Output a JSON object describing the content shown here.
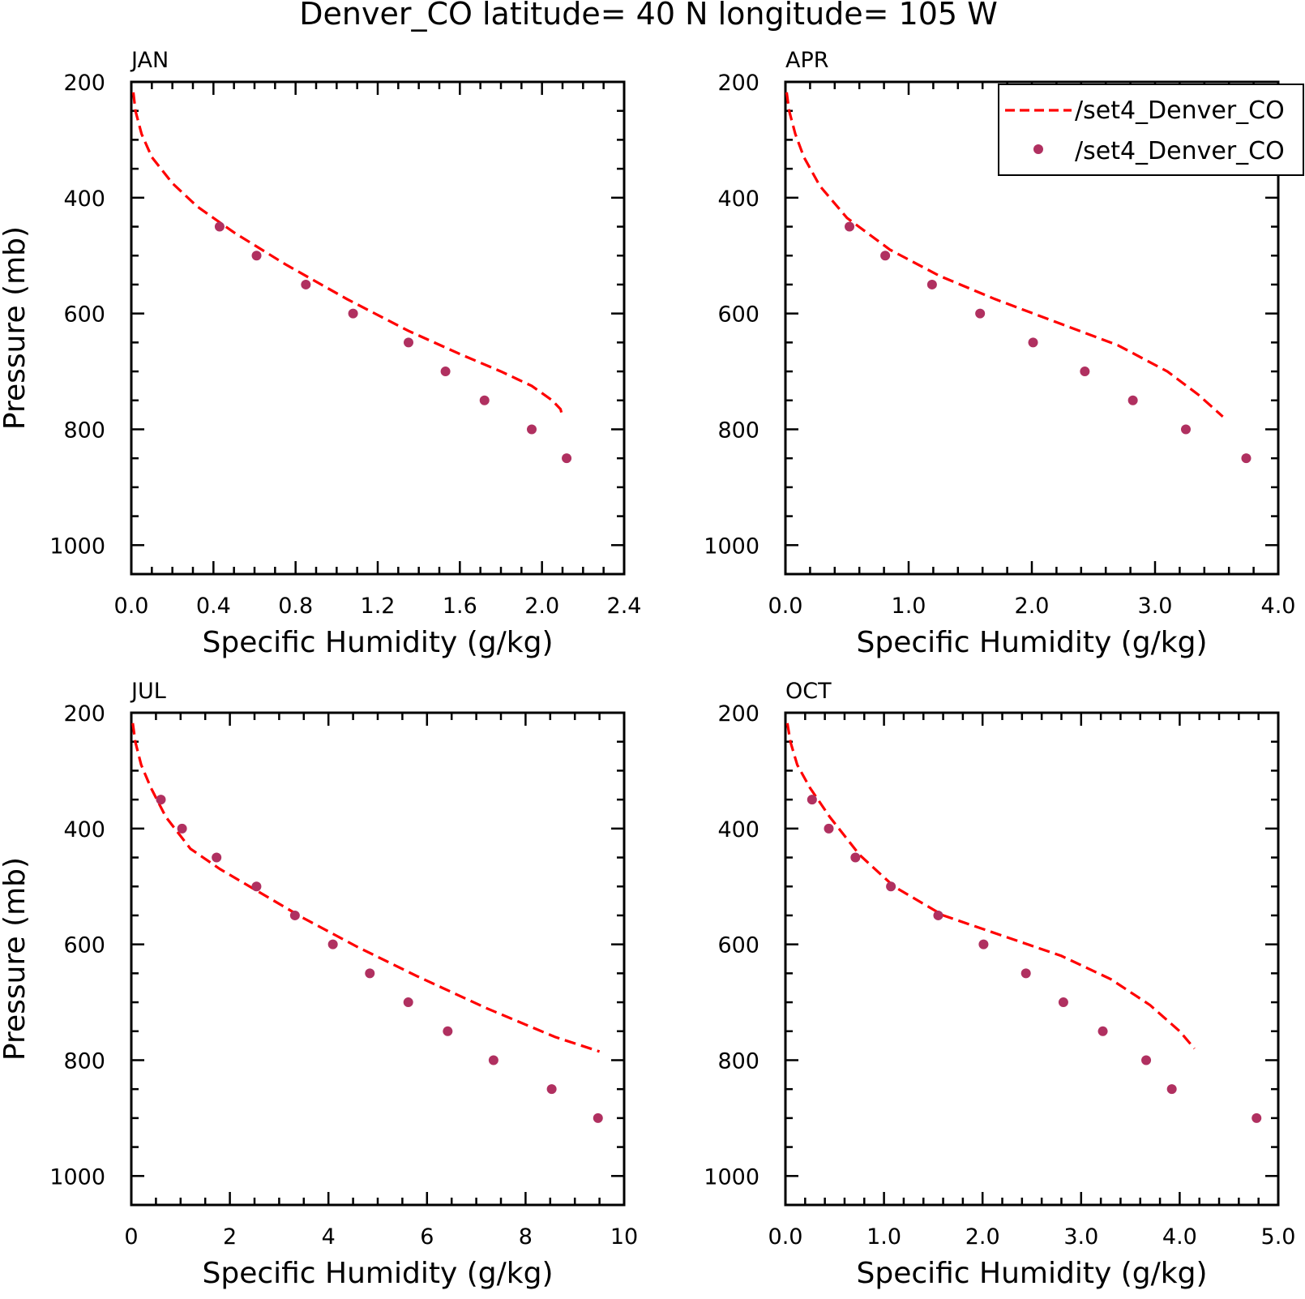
{
  "title": "Denver_CO  latitude= 40 N longitude= 105 W",
  "legend": {
    "entries": [
      {
        "label": "/set4_Denver_CO",
        "style": "dashed-line",
        "color": "#ff0000"
      },
      {
        "label": "/set4_Denver_CO",
        "style": "marker",
        "color": "#b03060"
      }
    ]
  },
  "colors": {
    "line": "#ff0000",
    "marker": "#b03060",
    "axes": "#000000"
  },
  "chart_data": [
    {
      "type": "line",
      "panel": "JAN",
      "xlabel": "Specific Humidity (g/kg)",
      "ylabel": "Pressure (mb)",
      "xlim": [
        0,
        2.4
      ],
      "ylim": [
        1050,
        200
      ],
      "y_inverted": true,
      "xticks": [
        0,
        0.4,
        0.8,
        1.2,
        1.6,
        2.0,
        2.4
      ],
      "xtick_labels": [
        "0.0",
        "0.4",
        "0.8",
        "1.2",
        "1.6",
        "2.0",
        "2.4"
      ],
      "xminor": 0.1,
      "yticks": [
        200,
        400,
        600,
        800,
        1000
      ],
      "ytick_labels": [
        "200",
        "400",
        "600",
        "800",
        "1000"
      ],
      "yminor": 50,
      "series": [
        {
          "name": "/set4_Denver_CO",
          "style": "dashed-line",
          "x": [
            0.01,
            0.02,
            0.05,
            0.1,
            0.2,
            0.32,
            0.5,
            0.75,
            1.05,
            1.35,
            1.6,
            1.8,
            1.95,
            2.05,
            2.09,
            2.1
          ],
          "y": [
            218,
            250,
            290,
            330,
            375,
            415,
            460,
            515,
            575,
            630,
            670,
            700,
            725,
            750,
            765,
            778
          ]
        },
        {
          "name": "/set4_Denver_CO",
          "style": "marker",
          "x": [
            0.43,
            0.61,
            0.85,
            1.08,
            1.35,
            1.53,
            1.72,
            1.95,
            2.12
          ],
          "y": [
            450,
            500,
            550,
            600,
            650,
            700,
            750,
            800,
            850
          ]
        }
      ]
    },
    {
      "type": "line",
      "panel": "APR",
      "xlabel": "Specific Humidity (g/kg)",
      "ylabel": "",
      "xlim": [
        0,
        4.0
      ],
      "ylim": [
        1050,
        200
      ],
      "y_inverted": true,
      "xticks": [
        0,
        1.0,
        2.0,
        3.0,
        4.0
      ],
      "xtick_labels": [
        "0.0",
        "1.0",
        "2.0",
        "3.0",
        "4.0"
      ],
      "xminor": 0.2,
      "yticks": [
        200,
        400,
        600,
        800,
        1000
      ],
      "ytick_labels": [
        "200",
        "400",
        "600",
        "800",
        "1000"
      ],
      "yminor": 50,
      "legend_position": "top-right",
      "series": [
        {
          "name": "/set4_Denver_CO",
          "style": "dashed-line",
          "x": [
            0.01,
            0.03,
            0.08,
            0.15,
            0.28,
            0.5,
            0.85,
            1.25,
            1.7,
            2.2,
            2.7,
            3.1,
            3.35,
            3.55
          ],
          "y": [
            218,
            250,
            290,
            330,
            380,
            435,
            490,
            535,
            575,
            615,
            655,
            700,
            740,
            778
          ]
        },
        {
          "name": "/set4_Denver_CO",
          "style": "marker",
          "x": [
            0.52,
            0.81,
            1.19,
            1.58,
            2.01,
            2.43,
            2.82,
            3.25,
            3.74
          ],
          "y": [
            450,
            500,
            550,
            600,
            650,
            700,
            750,
            800,
            850
          ]
        }
      ]
    },
    {
      "type": "line",
      "panel": "JUL",
      "xlabel": "Specific Humidity (g/kg)",
      "ylabel": "Pressure (mb)",
      "xlim": [
        0,
        10
      ],
      "ylim": [
        1050,
        200
      ],
      "y_inverted": true,
      "xticks": [
        0,
        2,
        4,
        6,
        8,
        10
      ],
      "xtick_labels": [
        "0",
        "2",
        "4",
        "6",
        "8",
        "10"
      ],
      "xminor": 0.5,
      "yticks": [
        200,
        400,
        600,
        800,
        1000
      ],
      "ytick_labels": [
        "200",
        "400",
        "600",
        "800",
        "1000"
      ],
      "yminor": 50,
      "series": [
        {
          "name": "/set4_Denver_CO",
          "style": "dashed-line",
          "x": [
            0.03,
            0.08,
            0.2,
            0.4,
            0.7,
            1.2,
            1.8,
            2.6,
            3.5,
            4.6,
            5.8,
            7.2,
            8.6,
            9.5
          ],
          "y": [
            218,
            250,
            290,
            330,
            380,
            435,
            470,
            510,
            555,
            605,
            655,
            710,
            760,
            785
          ]
        },
        {
          "name": "/set4_Denver_CO",
          "style": "marker",
          "x": [
            0.6,
            1.03,
            1.73,
            2.54,
            3.32,
            4.09,
            4.84,
            5.62,
            6.42,
            7.35,
            8.53,
            9.47
          ],
          "y": [
            350,
            400,
            450,
            500,
            550,
            600,
            650,
            700,
            750,
            800,
            850,
            900
          ]
        }
      ]
    },
    {
      "type": "line",
      "panel": "OCT",
      "xlabel": "Specific Humidity (g/kg)",
      "ylabel": "",
      "xlim": [
        0,
        5.0
      ],
      "ylim": [
        1050,
        200
      ],
      "y_inverted": true,
      "xticks": [
        0,
        1.0,
        2.0,
        3.0,
        4.0,
        5.0
      ],
      "xtick_labels": [
        "0.0",
        "1.0",
        "2.0",
        "3.0",
        "4.0",
        "5.0"
      ],
      "xminor": 0.2,
      "yticks": [
        200,
        400,
        600,
        800,
        1000
      ],
      "ytick_labels": [
        "200",
        "400",
        "600",
        "800",
        "1000"
      ],
      "yminor": 50,
      "series": [
        {
          "name": "/set4_Denver_CO",
          "style": "dashed-line",
          "x": [
            0.02,
            0.05,
            0.12,
            0.25,
            0.45,
            0.75,
            1.1,
            1.6,
            2.2,
            2.8,
            3.3,
            3.7,
            4.0,
            4.15
          ],
          "y": [
            218,
            250,
            290,
            330,
            380,
            445,
            500,
            550,
            585,
            620,
            660,
            705,
            750,
            780
          ]
        },
        {
          "name": "/set4_Denver_CO",
          "style": "marker",
          "x": [
            0.27,
            0.44,
            0.71,
            1.07,
            1.55,
            2.01,
            2.44,
            2.82,
            3.22,
            3.66,
            3.92,
            4.78
          ],
          "y": [
            350,
            400,
            450,
            500,
            550,
            600,
            650,
            700,
            750,
            800,
            850,
            900
          ]
        }
      ]
    }
  ]
}
